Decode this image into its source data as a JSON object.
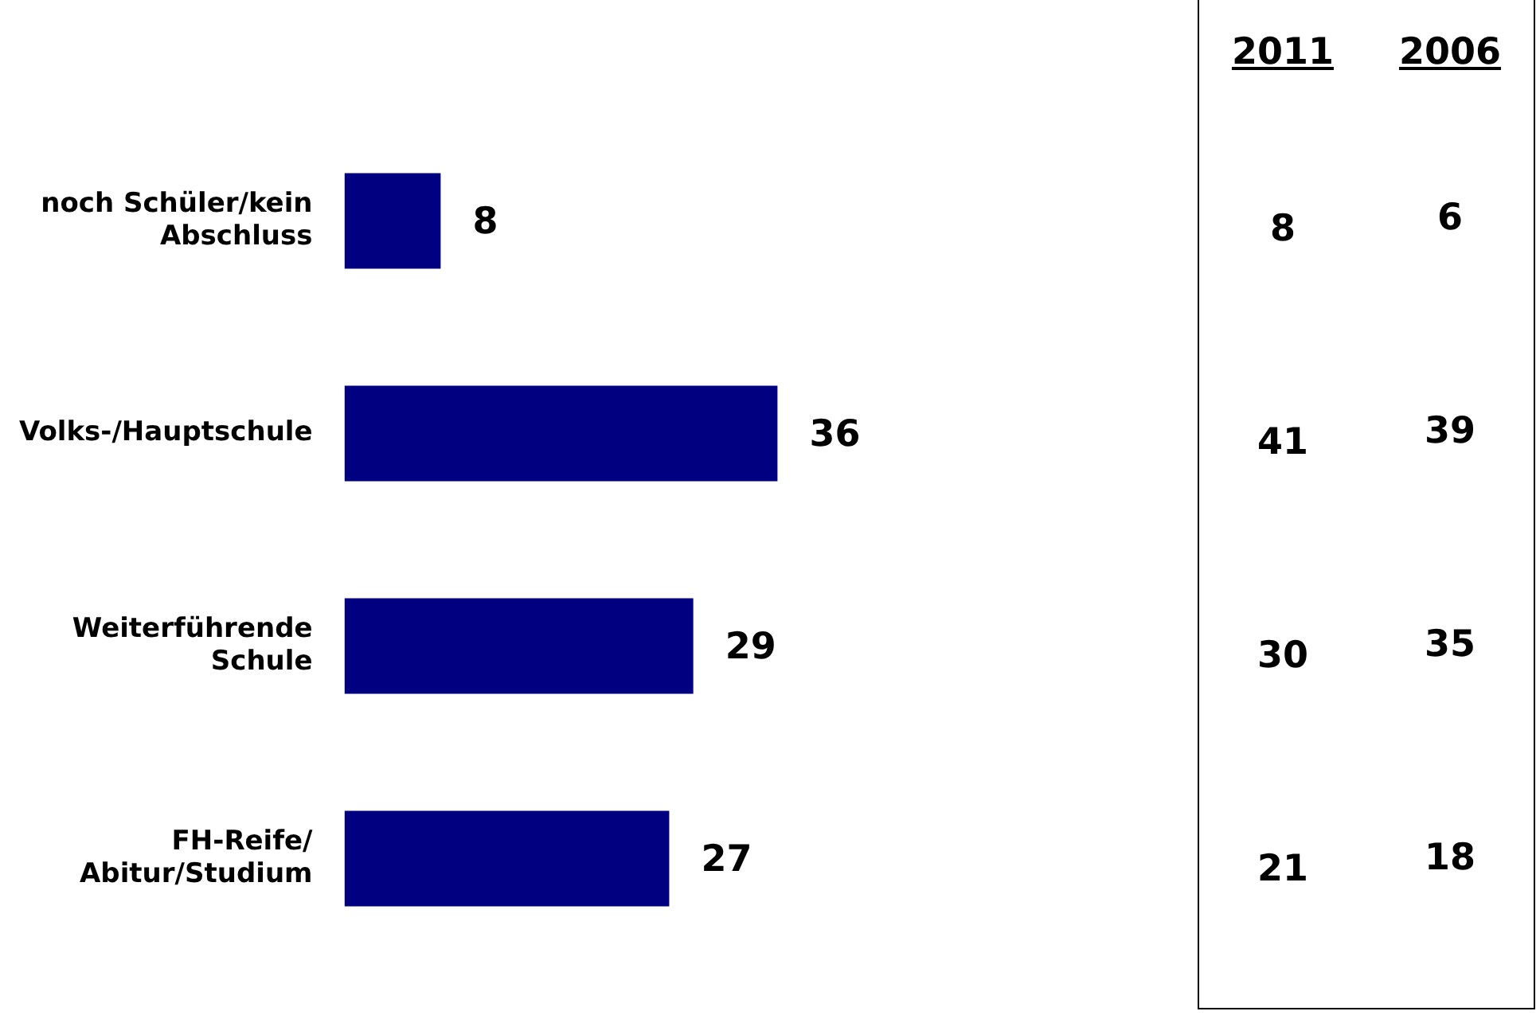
{
  "chart_data": [
    {
      "type": "bar",
      "orientation": "horizontal",
      "categories": [
        "noch Schüler/kein Abschluss",
        "Volks-/Hauptschule",
        "Weiterführende Schule",
        "FH-Reife/ Abitur/Studium"
      ],
      "values": [
        8,
        36,
        29,
        27
      ],
      "color": "#000080",
      "tick_labels": "y",
      "data_labels": true,
      "legend": false
    },
    {
      "type": "heatmap",
      "categories": [
        "2011",
        "2006"
      ],
      "y_categories": [
        null,
        null,
        null,
        null
      ],
      "cells": [
        [
          8,
          6
        ],
        [
          41,
          39
        ],
        [
          30,
          35
        ],
        [
          21,
          18
        ]
      ],
      "data_labels": true
    }
  ]
}
